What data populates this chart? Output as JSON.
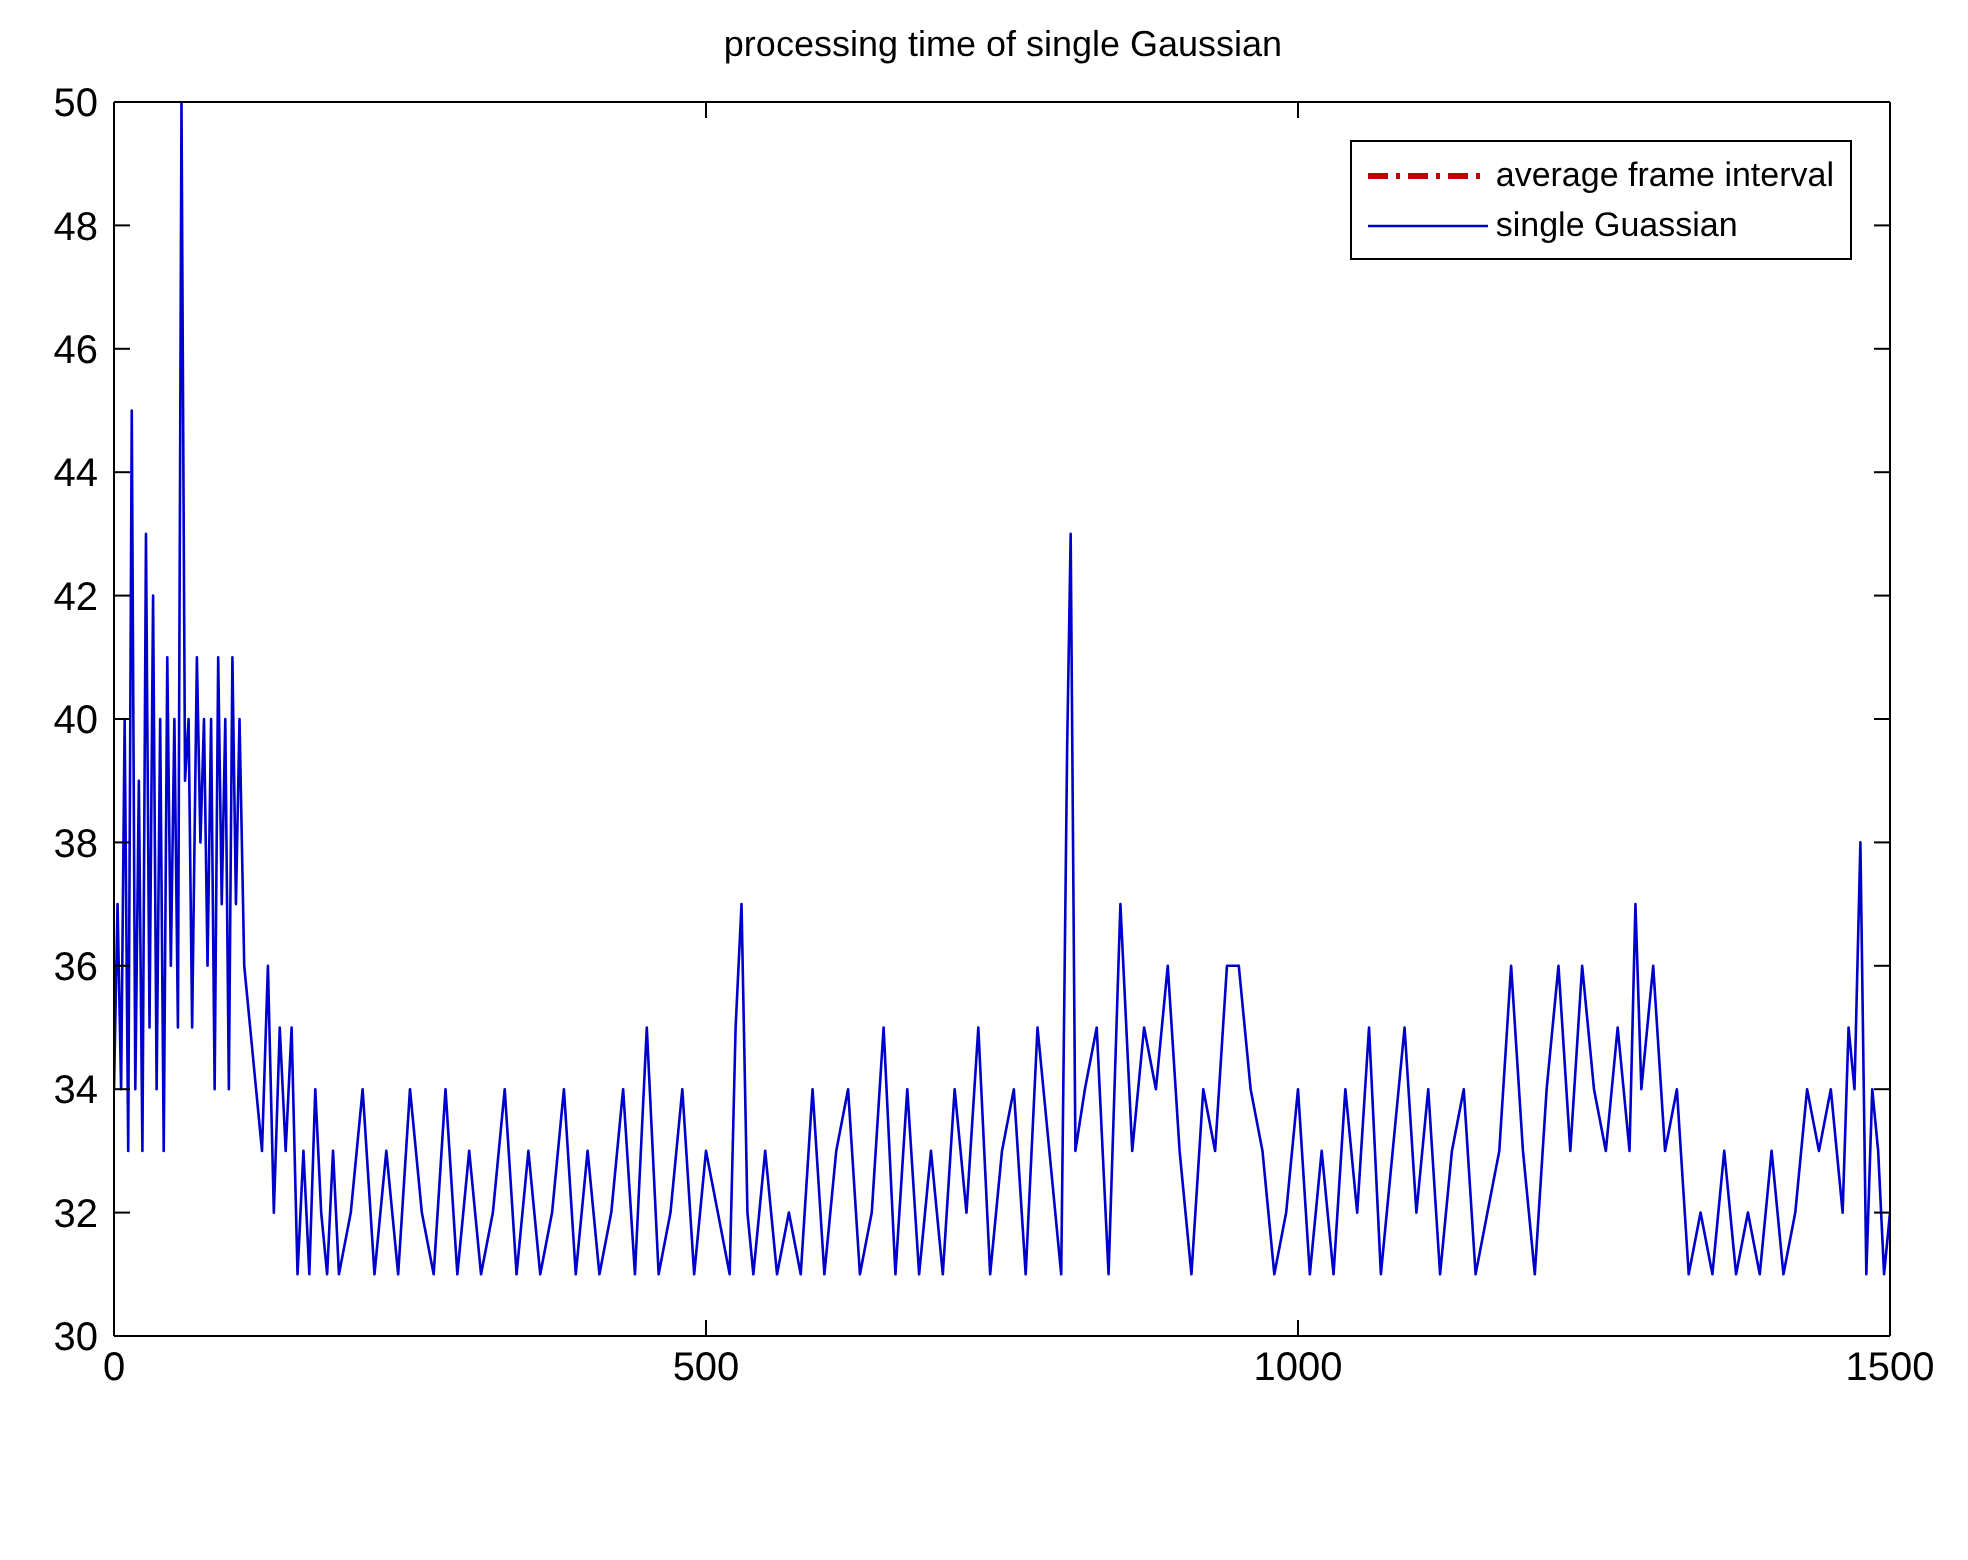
{
  "chart_data": {
    "type": "line",
    "title": "processing time of single Gaussian",
    "xlim": [
      0,
      1500
    ],
    "xticks": [
      0,
      500,
      1000,
      1500
    ],
    "ylim": [
      30,
      50
    ],
    "yticks": [
      30,
      32,
      34,
      36,
      38,
      40,
      42,
      44,
      46,
      48,
      50
    ],
    "legend": "top right",
    "marker": "none",
    "series": [
      {
        "name": "average frame interval",
        "color": "#c00000",
        "line_style": "dashed"
      },
      {
        "name": "single Guassian",
        "color": "#0000cc",
        "line_style": "solid",
        "x": [
          0,
          3,
          6,
          9,
          12,
          15,
          18,
          21,
          24,
          27,
          30,
          33,
          36,
          39,
          42,
          45,
          48,
          51,
          54,
          57,
          60,
          63,
          66,
          70,
          73,
          76,
          79,
          82,
          85,
          88,
          91,
          94,
          97,
          100,
          103,
          106,
          110,
          115,
          120,
          125,
          130,
          135,
          140,
          145,
          150,
          155,
          160,
          165,
          170,
          175,
          180,
          185,
          190,
          200,
          210,
          220,
          230,
          240,
          250,
          260,
          270,
          280,
          290,
          300,
          310,
          320,
          330,
          340,
          350,
          360,
          370,
          380,
          390,
          400,
          410,
          420,
          430,
          440,
          450,
          460,
          470,
          480,
          490,
          500,
          510,
          520,
          525,
          530,
          535,
          540,
          550,
          560,
          570,
          580,
          590,
          600,
          610,
          620,
          630,
          640,
          650,
          660,
          670,
          680,
          690,
          700,
          710,
          720,
          730,
          740,
          750,
          760,
          770,
          780,
          790,
          800,
          805,
          808,
          812,
          820,
          830,
          840,
          850,
          860,
          870,
          880,
          890,
          900,
          910,
          920,
          930,
          940,
          950,
          960,
          970,
          980,
          990,
          1000,
          1010,
          1020,
          1030,
          1040,
          1050,
          1060,
          1070,
          1080,
          1090,
          1100,
          1110,
          1120,
          1130,
          1140,
          1150,
          1160,
          1170,
          1180,
          1190,
          1200,
          1210,
          1220,
          1230,
          1240,
          1250,
          1260,
          1270,
          1280,
          1285,
          1290,
          1300,
          1310,
          1320,
          1330,
          1340,
          1350,
          1360,
          1370,
          1380,
          1390,
          1400,
          1410,
          1420,
          1430,
          1440,
          1450,
          1460,
          1465,
          1470,
          1475,
          1480,
          1485,
          1490,
          1495,
          1500
        ],
        "values": [
          34,
          37,
          34,
          40,
          33,
          45,
          34,
          39,
          33,
          43,
          35,
          42,
          34,
          40,
          33,
          41,
          36,
          40,
          35,
          50,
          39,
          40,
          35,
          41,
          38,
          40,
          36,
          40,
          34,
          41,
          37,
          40,
          34,
          41,
          37,
          40,
          36,
          35,
          34,
          33,
          36,
          32,
          35,
          33,
          35,
          31,
          33,
          31,
          34,
          32,
          31,
          33,
          31,
          32,
          34,
          31,
          33,
          31,
          34,
          32,
          31,
          34,
          31,
          33,
          31,
          32,
          34,
          31,
          33,
          31,
          32,
          34,
          31,
          33,
          31,
          32,
          34,
          31,
          35,
          31,
          32,
          34,
          31,
          33,
          32,
          31,
          35,
          37,
          32,
          31,
          33,
          31,
          32,
          31,
          34,
          31,
          33,
          34,
          31,
          32,
          35,
          31,
          34,
          31,
          33,
          31,
          34,
          32,
          35,
          31,
          33,
          34,
          31,
          35,
          33,
          31,
          39.5,
          43,
          33,
          34,
          35,
          31,
          37,
          33,
          35,
          34,
          36,
          33,
          31,
          34,
          33,
          36,
          36,
          34,
          33,
          31,
          32,
          34,
          31,
          33,
          31,
          34,
          32,
          35,
          31,
          33,
          35,
          32,
          34,
          31,
          33,
          34,
          31,
          32,
          33,
          36,
          33,
          31,
          34,
          36,
          33,
          36,
          34,
          33,
          35,
          33,
          37,
          34,
          36,
          33,
          34,
          31,
          32,
          31,
          33,
          31,
          32,
          31,
          33,
          31,
          32,
          34,
          33,
          34,
          32,
          35,
          34,
          38,
          31,
          34,
          33,
          31,
          32
        ]
      }
    ]
  }
}
